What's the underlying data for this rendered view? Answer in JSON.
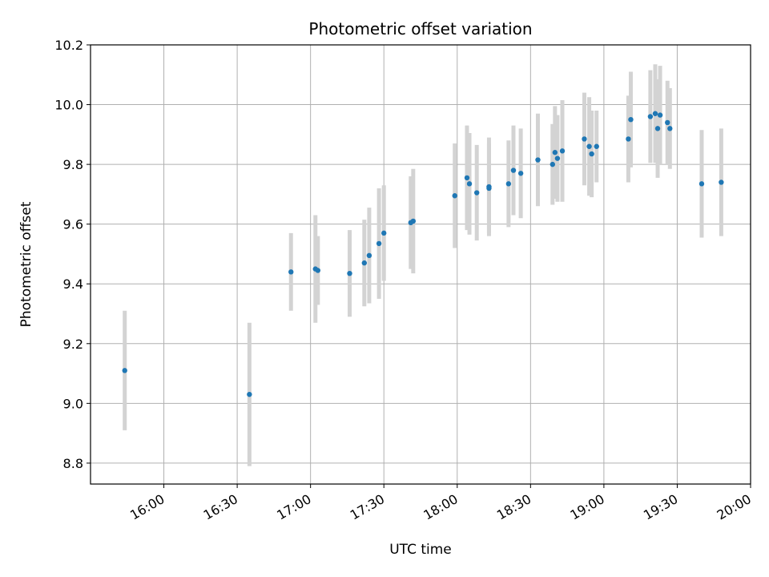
{
  "chart_data": {
    "type": "scatter",
    "title": "Photometric offset variation",
    "xlabel": "UTC time",
    "ylabel": "Photometric offset",
    "x_ticks": [
      "16:00",
      "16:30",
      "17:00",
      "17:30",
      "18:00",
      "18:30",
      "19:00",
      "19:30",
      "20:00"
    ],
    "y_ticks": [
      "8.8",
      "9.0",
      "9.2",
      "9.4",
      "9.6",
      "9.8",
      "10.0",
      "10.2"
    ],
    "xlim": [
      "15:30",
      "20:00"
    ],
    "ylim": [
      8.73,
      10.2
    ],
    "grid": true,
    "colors": {
      "point": "#1f77b4",
      "errorbar": "#d3d3d3",
      "grid": "#b0b0b0"
    },
    "points": [
      {
        "x": "15:44",
        "y": 9.11,
        "yerr": 0.2
      },
      {
        "x": "16:35",
        "y": 9.03,
        "yerr": 0.24
      },
      {
        "x": "16:52",
        "y": 9.44,
        "yerr": 0.13
      },
      {
        "x": "17:02",
        "y": 9.45,
        "yerr": 0.18
      },
      {
        "x": "17:03",
        "y": 9.445,
        "yerr": 0.115
      },
      {
        "x": "17:16",
        "y": 9.435,
        "yerr": 0.145
      },
      {
        "x": "17:22",
        "y": 9.47,
        "yerr": 0.145
      },
      {
        "x": "17:24",
        "y": 9.495,
        "yerr": 0.16
      },
      {
        "x": "17:28",
        "y": 9.535,
        "yerr": 0.185
      },
      {
        "x": "17:30",
        "y": 9.57,
        "yerr": 0.16
      },
      {
        "x": "17:41",
        "y": 9.605,
        "yerr": 0.155
      },
      {
        "x": "17:42",
        "y": 9.61,
        "yerr": 0.175
      },
      {
        "x": "17:59",
        "y": 9.695,
        "yerr": 0.175
      },
      {
        "x": "18:04",
        "y": 9.755,
        "yerr": 0.175
      },
      {
        "x": "18:05",
        "y": 9.735,
        "yerr": 0.17
      },
      {
        "x": "18:08",
        "y": 9.705,
        "yerr": 0.16
      },
      {
        "x": "18:13",
        "y": 9.725,
        "yerr": 0.165
      },
      {
        "x": "18:13",
        "y": 9.72,
        "yerr": 0.15
      },
      {
        "x": "18:21",
        "y": 9.735,
        "yerr": 0.145
      },
      {
        "x": "18:23",
        "y": 9.78,
        "yerr": 0.15
      },
      {
        "x": "18:26",
        "y": 9.77,
        "yerr": 0.15
      },
      {
        "x": "18:33",
        "y": 9.815,
        "yerr": 0.155
      },
      {
        "x": "18:39",
        "y": 9.8,
        "yerr": 0.135
      },
      {
        "x": "18:40",
        "y": 9.84,
        "yerr": 0.155
      },
      {
        "x": "18:41",
        "y": 9.82,
        "yerr": 0.145
      },
      {
        "x": "18:43",
        "y": 9.845,
        "yerr": 0.17
      },
      {
        "x": "18:52",
        "y": 9.885,
        "yerr": 0.155
      },
      {
        "x": "18:54",
        "y": 9.86,
        "yerr": 0.165
      },
      {
        "x": "18:55",
        "y": 9.835,
        "yerr": 0.145
      },
      {
        "x": "18:57",
        "y": 9.86,
        "yerr": 0.12
      },
      {
        "x": "19:10",
        "y": 9.885,
        "yerr": 0.145
      },
      {
        "x": "19:11",
        "y": 9.95,
        "yerr": 0.16
      },
      {
        "x": "19:19",
        "y": 9.96,
        "yerr": 0.155
      },
      {
        "x": "19:21",
        "y": 9.97,
        "yerr": 0.165
      },
      {
        "x": "19:22",
        "y": 9.92,
        "yerr": 0.165
      },
      {
        "x": "19:23",
        "y": 9.965,
        "yerr": 0.165
      },
      {
        "x": "19:26",
        "y": 9.94,
        "yerr": 0.14
      },
      {
        "x": "19:27",
        "y": 9.92,
        "yerr": 0.135
      },
      {
        "x": "19:40",
        "y": 9.735,
        "yerr": 0.18
      },
      {
        "x": "19:48",
        "y": 9.74,
        "yerr": 0.18
      }
    ]
  }
}
